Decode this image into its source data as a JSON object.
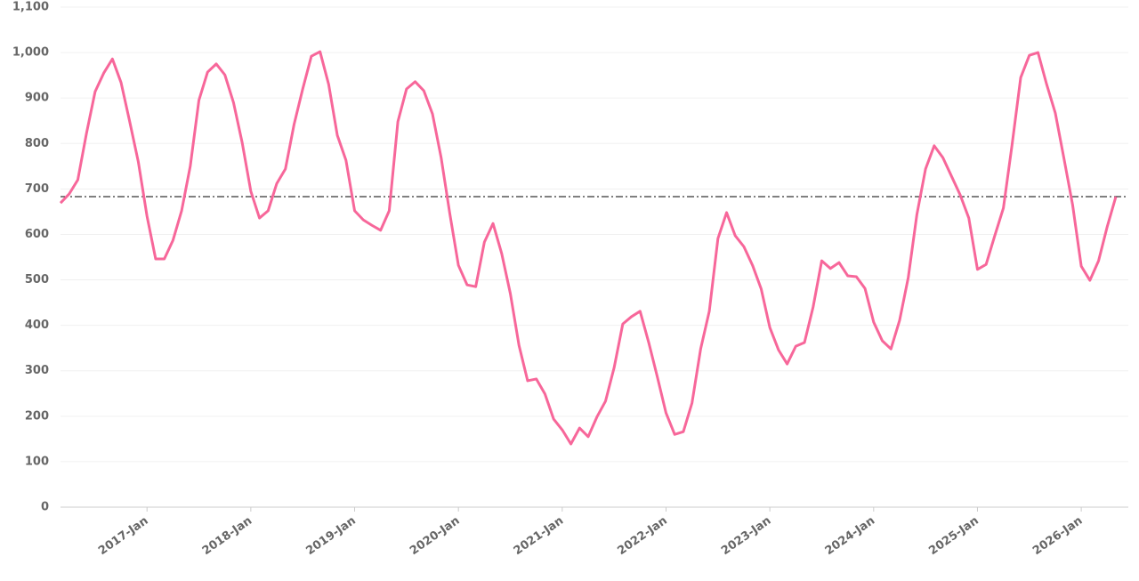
{
  "chart_data": {
    "type": "line",
    "categories": [
      null,
      null,
      null,
      null,
      null,
      null,
      null,
      null,
      null,
      null,
      "2017-Jan",
      null,
      null,
      null,
      null,
      null,
      null,
      null,
      null,
      null,
      null,
      null,
      "2018-Jan",
      null,
      null,
      null,
      null,
      null,
      null,
      null,
      null,
      null,
      null,
      null,
      "2019-Jan",
      null,
      null,
      null,
      null,
      null,
      null,
      null,
      null,
      null,
      null,
      null,
      "2020-Jan",
      null,
      null,
      null,
      null,
      null,
      null,
      null,
      null,
      null,
      null,
      null,
      "2021-Jan",
      null,
      null,
      null,
      null,
      null,
      null,
      null,
      null,
      null,
      null,
      null,
      "2022-Jan",
      null,
      null,
      null,
      null,
      null,
      null,
      null,
      null,
      null,
      null,
      null,
      "2023-Jan",
      null,
      null,
      null,
      null,
      null,
      null,
      null,
      null,
      null,
      null,
      null,
      "2024-Jan",
      null,
      null,
      null,
      null,
      null,
      null,
      null,
      null,
      null,
      null,
      null,
      "2025-Jan",
      null,
      null,
      null,
      null,
      null,
      null,
      null,
      null,
      null,
      null,
      null,
      "2026-Jan",
      null,
      null,
      null,
      null
    ],
    "values": [
      669,
      689,
      720,
      822,
      914,
      955,
      986,
      934,
      848,
      759,
      640,
      546,
      546,
      587,
      652,
      750,
      895,
      957,
      975,
      951,
      890,
      802,
      695,
      636,
      652,
      712,
      744,
      842,
      920,
      992,
      1002,
      930,
      818,
      763,
      652,
      632,
      620,
      609,
      652,
      848,
      920,
      936,
      916,
      865,
      769,
      646,
      532,
      489,
      485,
      583,
      624,
      558,
      470,
      356,
      278,
      282,
      249,
      194,
      170,
      139,
      174,
      155,
      198,
      233,
      307,
      403,
      419,
      431,
      362,
      286,
      207,
      160,
      166,
      229,
      348,
      431,
      591,
      648,
      597,
      573,
      532,
      480,
      395,
      346,
      315,
      354,
      362,
      440,
      542,
      525,
      538,
      509,
      507,
      481,
      407,
      366,
      348,
      411,
      505,
      644,
      744,
      795,
      769,
      728,
      687,
      636,
      523,
      534,
      597,
      658,
      797,
      945,
      994,
      1000,
      930,
      867,
      767,
      665,
      530,
      499,
      542,
      617,
      683
    ],
    "color": "#f7679a",
    "reference_line": 683,
    "ylim": [
      0,
      1100
    ],
    "yticks": [
      0,
      100,
      200,
      300,
      400,
      500,
      600,
      700,
      800,
      900,
      {
        "value": 1000,
        "label": "1,000"
      },
      {
        "value": 1100,
        "label": "1,100"
      }
    ],
    "grid": true
  }
}
